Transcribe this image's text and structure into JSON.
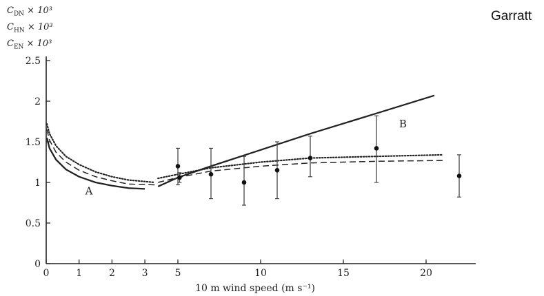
{
  "credit": "Garratt",
  "ylabels": [
    {
      "sym": "C",
      "sub": "DN",
      "rest": " × 10³"
    },
    {
      "sym": "C",
      "sub": "HN",
      "rest": " × 10³"
    },
    {
      "sym": "C",
      "sub": "EN",
      "rest": " × 10³"
    }
  ],
  "chart_data": {
    "type": "line",
    "xlabel": "10 m wind speed (m s⁻¹)",
    "ylim": [
      0,
      2.5
    ],
    "y_ticks": [
      0,
      0.5,
      1,
      1.5,
      2,
      2.5
    ],
    "y_tick_labels": [
      "0",
      "0.5",
      "1",
      "1.5",
      "2",
      "2.5"
    ],
    "x_axis_note": "broken scale: 0–3 m/s expanded, 5–22 m/s compressed",
    "x_ticks": [
      0,
      1,
      2,
      3,
      5,
      10,
      15,
      20
    ],
    "x_tick_labels": [
      "0",
      "1",
      "2",
      "3",
      "5",
      "10",
      "15",
      "20"
    ],
    "annotations": [
      "A",
      "B"
    ],
    "series": [
      {
        "role": "solid",
        "x": [
          0.02,
          0.1,
          0.3,
          0.6,
          1,
          1.5,
          2,
          2.5,
          3
        ],
        "y": [
          1.55,
          1.42,
          1.28,
          1.16,
          1.07,
          1.0,
          0.96,
          0.93,
          0.92
        ]
      },
      {
        "role": "dotted",
        "x": [
          0.02,
          0.1,
          0.3,
          0.6,
          1,
          1.5,
          2,
          2.5,
          3.3
        ],
        "y": [
          1.72,
          1.6,
          1.45,
          1.32,
          1.22,
          1.13,
          1.07,
          1.03,
          1.0
        ]
      },
      {
        "role": "dashed",
        "x": [
          0.02,
          0.1,
          0.3,
          0.6,
          1,
          1.5,
          2,
          2.5,
          3.3
        ],
        "y": [
          1.65,
          1.52,
          1.37,
          1.25,
          1.15,
          1.07,
          1.02,
          0.98,
          0.97
        ]
      },
      {
        "role": "solid",
        "x": [
          3.8,
          5,
          7,
          10,
          13,
          17,
          20.5
        ],
        "y": [
          0.95,
          1.06,
          1.2,
          1.4,
          1.6,
          1.85,
          2.07
        ]
      },
      {
        "role": "dotted",
        "x": [
          3.8,
          5,
          7,
          10,
          13,
          17,
          21
        ],
        "y": [
          1.05,
          1.1,
          1.18,
          1.25,
          1.3,
          1.32,
          1.34
        ]
      },
      {
        "role": "dashed",
        "x": [
          3.8,
          5,
          7,
          10,
          13,
          17,
          21
        ],
        "y": [
          1.0,
          1.06,
          1.14,
          1.2,
          1.24,
          1.26,
          1.27
        ]
      }
    ],
    "points": [
      {
        "x": 5,
        "y": 1.2,
        "lo": 0.97,
        "hi": 1.42
      },
      {
        "x": 5.1,
        "y": 1.06,
        "lo": 1.0,
        "hi": 1.12
      },
      {
        "x": 7,
        "y": 1.1,
        "lo": 0.8,
        "hi": 1.42
      },
      {
        "x": 9,
        "y": 1.0,
        "lo": 0.72,
        "hi": 1.32
      },
      {
        "x": 11,
        "y": 1.15,
        "lo": 0.8,
        "hi": 1.5
      },
      {
        "x": 13,
        "y": 1.3,
        "lo": 1.07,
        "hi": 1.57
      },
      {
        "x": 17,
        "y": 1.42,
        "lo": 1.0,
        "hi": 1.82
      },
      {
        "x": 22,
        "y": 1.08,
        "lo": 0.82,
        "hi": 1.34
      }
    ]
  }
}
